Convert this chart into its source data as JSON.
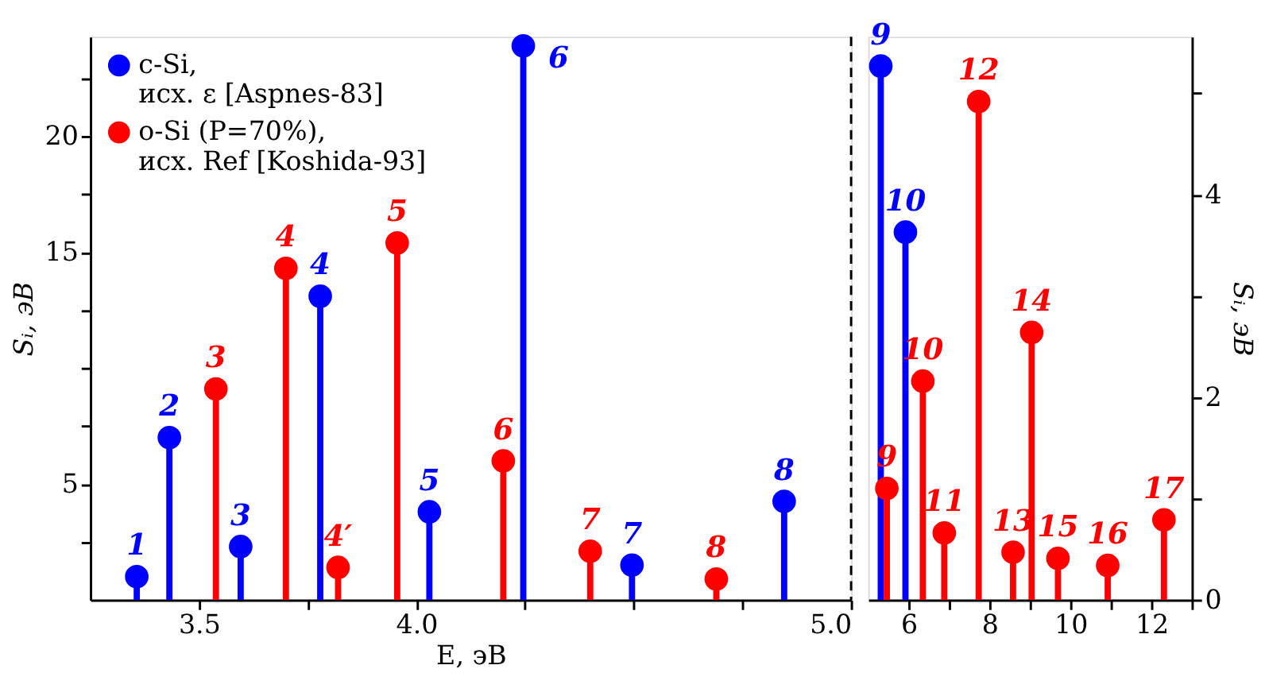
{
  "chart_data": [
    {
      "type": "lollipop",
      "xlabel": "E, эВ",
      "ylabel": "Sᵢ, эВ",
      "xlim": [
        3.25,
        5.0
      ],
      "ylim": [
        0,
        24.3
      ],
      "xticks": [
        3.5,
        {
          "value": 3.75,
          "label": null
        },
        {
          "value": 4.0,
          "label": "4.0"
        },
        {
          "value": 4.25,
          "label": null
        },
        {
          "value": 4.5,
          "label": null
        },
        {
          "value": 4.75,
          "label": null
        },
        {
          "value": 5.0,
          "label": "5.0"
        }
      ],
      "yticks": [
        {
          "value": 2.5,
          "label": null
        },
        5,
        {
          "value": 7.5,
          "label": null
        },
        {
          "value": 10,
          "label": null
        },
        {
          "value": 12.5,
          "label": null
        },
        15,
        {
          "value": 17.5,
          "label": null
        },
        20,
        {
          "value": 22.5,
          "label": null
        }
      ],
      "legend": "top left",
      "marker": "circle",
      "ref_lines": [
        {
          "axis": "x",
          "value": 5.0,
          "color": "#000000",
          "line_style": "dashed"
        }
      ],
      "series": [
        {
          "name": "c-Si,\nисх. ε [Aspnes-83]",
          "color": "#0000ff",
          "x": [
            3.357,
            3.432,
            3.596,
            3.779,
            4.03,
            4.246,
            4.496,
            4.846
          ],
          "values": [
            1.0,
            7.0,
            2.3,
            13.1,
            3.8,
            23.9,
            1.5,
            4.25
          ]
        },
        {
          "name": "o-Si (P=70%),\nисх. Ref [Koshida-93]",
          "color": "#ff0000",
          "x": [
            3.539,
            3.7,
            3.82,
            3.956,
            4.2,
            4.4,
            4.69
          ],
          "values": [
            9.1,
            14.3,
            1.4,
            15.4,
            6.0,
            2.1,
            0.9
          ]
        }
      ],
      "annotations": [
        {
          "text": "1",
          "x": 3.357,
          "y": 1.0
        },
        {
          "text": "2",
          "x": 3.432,
          "y": 7.0
        },
        {
          "text": "3",
          "x": 3.596,
          "y": 2.3
        },
        {
          "text": "4",
          "x": 3.779,
          "y": 13.1
        },
        {
          "text": "5",
          "x": 4.03,
          "y": 3.8
        },
        {
          "text": "6",
          "x": 4.246,
          "y": 23.9
        },
        {
          "text": "7",
          "x": 4.496,
          "y": 1.5
        },
        {
          "text": "8",
          "x": 4.846,
          "y": 4.25
        },
        {
          "text": "3",
          "x": 3.539,
          "y": 9.1
        },
        {
          "text": "4",
          "x": 3.7,
          "y": 14.3
        },
        {
          "text": "4′",
          "x": 3.82,
          "y": 1.4
        },
        {
          "text": "5",
          "x": 3.956,
          "y": 15.4
        },
        {
          "text": "6",
          "x": 4.2,
          "y": 6.0
        },
        {
          "text": "7",
          "x": 4.4,
          "y": 2.1
        },
        {
          "text": "8",
          "x": 4.69,
          "y": 0.9
        }
      ]
    },
    {
      "type": "lollipop",
      "ylabel": "Sᵢ, эВ",
      "xlim": [
        5,
        13
      ],
      "ylim": [
        0,
        5.56
      ],
      "xticks": [
        6,
        {
          "value": 7,
          "label": null
        },
        8,
        {
          "value": 9,
          "label": null
        },
        10,
        {
          "value": 11,
          "label": null
        },
        12,
        {
          "value": 13,
          "label": null
        }
      ],
      "yticks": [
        0,
        {
          "value": 1,
          "label": null
        },
        2,
        {
          "value": 3,
          "label": null
        },
        4,
        {
          "value": 5,
          "label": null
        }
      ],
      "marker": "circle",
      "series": [
        {
          "color": "#0000ff",
          "x": [
            5.31,
            5.92
          ],
          "values": [
            5.27,
            3.63
          ]
        },
        {
          "color": "#ff0000",
          "x": [
            5.46,
            6.35,
            6.88,
            7.73,
            8.58,
            9.04,
            9.69,
            10.92,
            12.31
          ],
          "values": [
            1.1,
            2.16,
            0.66,
            4.92,
            0.47,
            2.64,
            0.41,
            0.34,
            0.79
          ]
        }
      ],
      "annotations": [
        {
          "text": "9",
          "x": 5.31,
          "y": 5.27
        },
        {
          "text": "10",
          "x": 5.92,
          "y": 3.63
        },
        {
          "text": "9",
          "x": 5.46,
          "y": 1.1
        },
        {
          "text": "10",
          "x": 6.35,
          "y": 2.16
        },
        {
          "text": "11",
          "x": 6.88,
          "y": 0.66
        },
        {
          "text": "12",
          "x": 7.73,
          "y": 4.92
        },
        {
          "text": "13",
          "x": 8.58,
          "y": 0.47
        },
        {
          "text": "14",
          "x": 9.04,
          "y": 2.64
        },
        {
          "text": "15",
          "x": 9.69,
          "y": 0.41
        },
        {
          "text": "16",
          "x": 10.92,
          "y": 0.34
        },
        {
          "text": "17",
          "x": 12.31,
          "y": 0.79
        }
      ]
    }
  ]
}
